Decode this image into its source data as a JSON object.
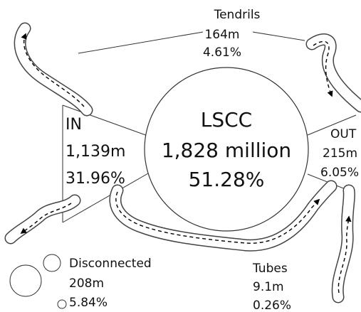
{
  "nodes": {
    "tendrils": {
      "label": "Tendrils",
      "count": "164m",
      "percent": "4.61%"
    },
    "in": {
      "label": "IN",
      "count": "1,139m",
      "percent": "31.96%"
    },
    "lscc": {
      "label": "LSCC",
      "count": "1,828 million",
      "percent": "51.28%"
    },
    "out": {
      "label": "OUT",
      "count": "215m",
      "percent": "6.05%"
    },
    "disconnected": {
      "label": "Disconnected",
      "count": "208m",
      "percent": "5.84%"
    },
    "tubes": {
      "label": "Tubes",
      "count": "9.1m",
      "percent": "0.26%"
    }
  }
}
